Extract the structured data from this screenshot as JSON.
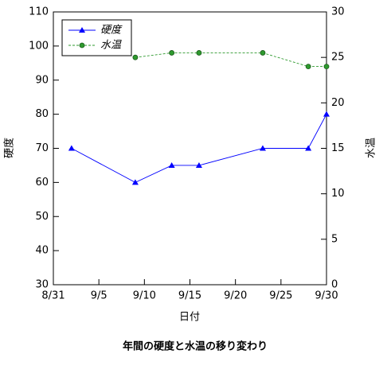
{
  "chart_data": {
    "type": "line",
    "title": "年間の硬度と水温の移り変わり",
    "xlabel": "日付",
    "ylabel": "硬度",
    "y2label": "水温",
    "xlim": [
      "8/31",
      "9/30"
    ],
    "xticks": [
      "8/31",
      "9/5",
      "9/10",
      "9/15",
      "9/20",
      "9/25",
      "9/30"
    ],
    "ylim": [
      30,
      110
    ],
    "yticks": [
      30,
      40,
      50,
      60,
      70,
      80,
      90,
      100,
      110
    ],
    "y2lim": [
      0,
      30
    ],
    "y2ticks": [
      0,
      5,
      10,
      15,
      20,
      25,
      30
    ],
    "legend": "upper left",
    "series": [
      {
        "name": "硬度",
        "color": "#0000ff",
        "marker": "triangle",
        "dashed": false,
        "x": [
          "9/2",
          "9/9",
          "9/13",
          "9/16",
          "9/23",
          "9/28",
          "9/30"
        ],
        "values": [
          70,
          60,
          65,
          65,
          70,
          70,
          80
        ]
      },
      {
        "name": "水温",
        "color": "#2e9a2e",
        "marker": "circle",
        "dashed": true,
        "axis": "y2",
        "x": [
          "9/9",
          "9/13",
          "9/16",
          "9/23",
          "9/28",
          "9/30"
        ],
        "values": [
          25,
          25.5,
          25.5,
          25.5,
          24,
          24
        ]
      }
    ]
  }
}
